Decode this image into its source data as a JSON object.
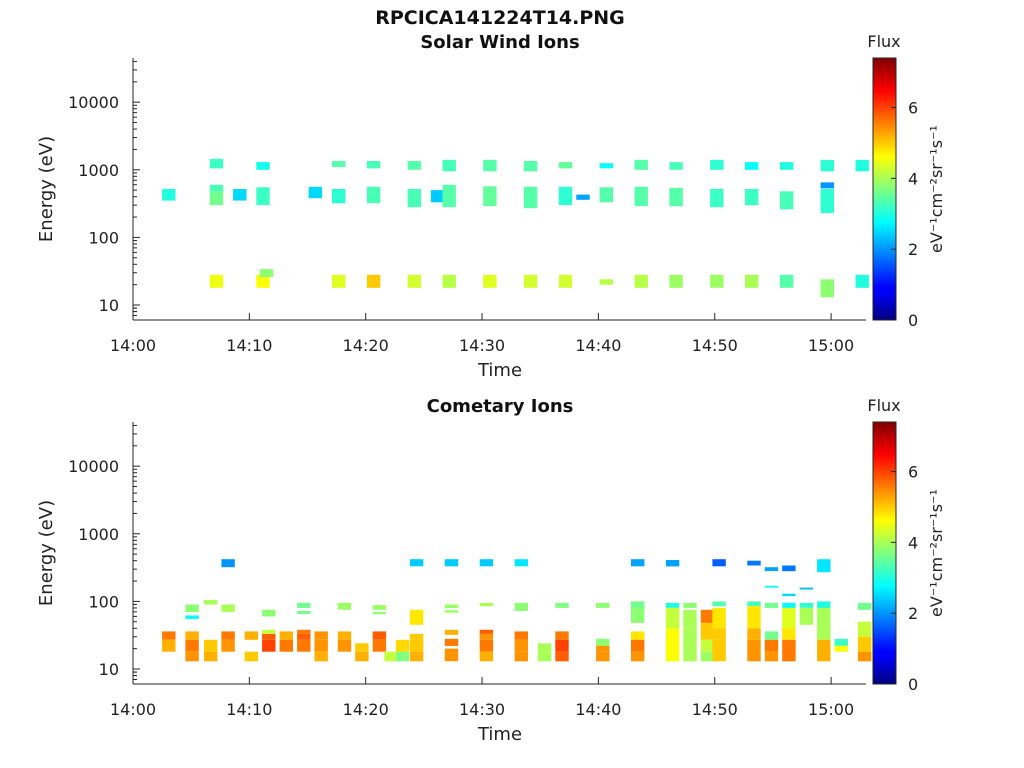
{
  "chart_data": [
    {
      "type": "heatmap",
      "title": "RPCICA141224T14.PNG",
      "subtitle": "Solar Wind Ions",
      "xlabel": "Time",
      "ylabel": "Energy (eV)",
      "x_ticks": [
        "14:00",
        "14:10",
        "14:20",
        "14:30",
        "14:40",
        "14:50",
        "15:00"
      ],
      "x_range_minutes": [
        0,
        63
      ],
      "y_scale": "log",
      "y_range": [
        6,
        45000
      ],
      "y_ticks": [
        "10",
        "100",
        "1000",
        "10000"
      ],
      "colorbar": {
        "label": "Flux",
        "unit": "eV⁻¹cm⁻²sr⁻¹s⁻¹",
        "range": [
          0,
          7.4
        ],
        "ticks": [
          "0",
          "2",
          "4",
          "6"
        ],
        "colormap": "jet"
      },
      "cells": [
        [
          2.5,
          350,
          520,
          3.0
        ],
        [
          6.6,
          1050,
          1450,
          3.2
        ],
        [
          6.6,
          480,
          600,
          3.3
        ],
        [
          6.6,
          300,
          480,
          3.6
        ],
        [
          6.6,
          18,
          28,
          4.5
        ],
        [
          8.6,
          350,
          520,
          2.5
        ],
        [
          10.6,
          1000,
          1300,
          2.9
        ],
        [
          10.6,
          300,
          550,
          3.2
        ],
        [
          10.6,
          18,
          28,
          4.6
        ],
        [
          10.9,
          26,
          34,
          3.8
        ],
        [
          15.1,
          380,
          560,
          2.5
        ],
        [
          17.1,
          1100,
          1350,
          3.4
        ],
        [
          17.1,
          320,
          520,
          3.1
        ],
        [
          17.1,
          18,
          28,
          4.4
        ],
        [
          20.1,
          1050,
          1350,
          3.3
        ],
        [
          20.1,
          320,
          560,
          3.3
        ],
        [
          20.1,
          18,
          28,
          5.0
        ],
        [
          23.6,
          1000,
          1350,
          3.4
        ],
        [
          23.6,
          280,
          520,
          3.3
        ],
        [
          23.6,
          18,
          28,
          4.3
        ],
        [
          25.6,
          330,
          500,
          2.4
        ],
        [
          26.6,
          950,
          1400,
          3.3
        ],
        [
          26.6,
          280,
          600,
          3.4
        ],
        [
          26.6,
          18,
          28,
          4.1
        ],
        [
          30.1,
          950,
          1400,
          3.4
        ],
        [
          30.1,
          290,
          570,
          3.5
        ],
        [
          30.1,
          18,
          28,
          4.4
        ],
        [
          33.6,
          950,
          1350,
          3.4
        ],
        [
          33.6,
          270,
          560,
          3.4
        ],
        [
          33.6,
          18,
          28,
          4.3
        ],
        [
          36.6,
          1050,
          1300,
          3.5
        ],
        [
          36.6,
          300,
          560,
          3.1
        ],
        [
          36.6,
          18,
          28,
          4.3
        ],
        [
          38.1,
          360,
          430,
          2.1
        ],
        [
          40.1,
          1050,
          1250,
          2.8
        ],
        [
          40.1,
          330,
          550,
          3.4
        ],
        [
          40.1,
          20,
          24,
          4.1
        ],
        [
          43.1,
          1000,
          1400,
          3.4
        ],
        [
          43.1,
          290,
          560,
          3.4
        ],
        [
          43.1,
          18,
          28,
          4.1
        ],
        [
          46.1,
          1000,
          1300,
          3.3
        ],
        [
          46.1,
          290,
          540,
          3.4
        ],
        [
          46.1,
          18,
          28,
          3.9
        ],
        [
          49.6,
          1000,
          1400,
          3.1
        ],
        [
          49.6,
          280,
          520,
          3.2
        ],
        [
          49.6,
          18,
          28,
          3.9
        ],
        [
          52.6,
          1000,
          1300,
          2.8
        ],
        [
          52.6,
          300,
          520,
          3.2
        ],
        [
          52.6,
          18,
          28,
          4.0
        ],
        [
          55.6,
          1000,
          1300,
          3.0
        ],
        [
          55.6,
          260,
          480,
          3.3
        ],
        [
          55.6,
          18,
          28,
          3.4
        ],
        [
          59.1,
          950,
          1400,
          3.1
        ],
        [
          59.1,
          530,
          650,
          2.0
        ],
        [
          59.1,
          230,
          520,
          3.1
        ],
        [
          59.1,
          13,
          24,
          3.8
        ],
        [
          62.1,
          950,
          1400,
          3.0
        ],
        [
          62.1,
          18,
          28,
          3.0
        ]
      ]
    },
    {
      "type": "heatmap",
      "title": "Cometary Ions",
      "xlabel": "Time",
      "ylabel": "Energy (eV)",
      "x_ticks": [
        "14:00",
        "14:10",
        "14:20",
        "14:30",
        "14:40",
        "14:50",
        "15:00"
      ],
      "x_range_minutes": [
        0,
        63
      ],
      "y_scale": "log",
      "y_range": [
        6,
        45000
      ],
      "y_ticks": [
        "10",
        "100",
        "1000",
        "10000"
      ],
      "colorbar": {
        "label": "Flux",
        "unit": "eV⁻¹cm⁻²sr⁻¹s⁻¹",
        "range": [
          0,
          7.4
        ],
        "ticks": [
          "0",
          "2",
          "4",
          "6"
        ],
        "colormap": "jet"
      },
      "cells": [
        [
          2.5,
          27,
          36,
          5.6
        ],
        [
          2.5,
          18,
          27,
          5.2
        ],
        [
          4.5,
          70,
          90,
          3.8
        ],
        [
          4.5,
          55,
          62,
          2.8
        ],
        [
          4.5,
          27,
          36,
          5.2
        ],
        [
          4.5,
          18,
          27,
          5.6
        ],
        [
          4.5,
          13,
          18,
          5.4
        ],
        [
          6.1,
          90,
          105,
          4.0
        ],
        [
          6.1,
          18,
          27,
          5.0
        ],
        [
          6.1,
          13,
          18,
          5.2
        ],
        [
          7.6,
          320,
          420,
          2.0
        ],
        [
          7.6,
          70,
          90,
          4.0
        ],
        [
          7.6,
          27,
          36,
          5.6
        ],
        [
          7.6,
          18,
          27,
          5.4
        ],
        [
          9.6,
          27,
          36,
          5.2
        ],
        [
          9.6,
          13,
          18,
          5.0
        ],
        [
          11.1,
          60,
          75,
          3.8
        ],
        [
          11.1,
          33,
          38,
          4.2
        ],
        [
          11.1,
          27,
          33,
          5.8
        ],
        [
          11.1,
          18,
          27,
          6.0
        ],
        [
          12.6,
          27,
          36,
          5.2
        ],
        [
          12.6,
          18,
          27,
          5.6
        ],
        [
          14.1,
          80,
          95,
          3.6
        ],
        [
          14.1,
          65,
          72,
          3.6
        ],
        [
          14.1,
          33,
          38,
          5.6
        ],
        [
          14.1,
          27,
          33,
          5.8
        ],
        [
          14.1,
          18,
          27,
          5.6
        ],
        [
          15.6,
          27,
          36,
          5.4
        ],
        [
          15.6,
          18,
          27,
          5.4
        ],
        [
          15.6,
          13,
          18,
          5.2
        ],
        [
          17.6,
          75,
          95,
          3.9
        ],
        [
          17.6,
          27,
          36,
          5.2
        ],
        [
          17.6,
          18,
          27,
          5.4
        ],
        [
          19.1,
          18,
          24,
          5.0
        ],
        [
          19.1,
          13,
          18,
          5.2
        ],
        [
          20.6,
          75,
          88,
          3.9
        ],
        [
          20.6,
          65,
          70,
          3.8
        ],
        [
          20.6,
          27,
          36,
          5.8
        ],
        [
          20.6,
          18,
          27,
          5.6
        ],
        [
          21.6,
          13,
          18,
          4.2
        ],
        [
          22.6,
          18,
          27,
          4.9
        ],
        [
          22.6,
          13,
          18,
          3.7
        ],
        [
          23.8,
          330,
          420,
          2.4
        ],
        [
          23.8,
          45,
          75,
          4.8
        ],
        [
          23.8,
          27,
          33,
          5.0
        ],
        [
          23.8,
          18,
          27,
          5.0
        ],
        [
          23.8,
          13,
          18,
          5.2
        ],
        [
          26.8,
          330,
          420,
          2.4
        ],
        [
          26.8,
          80,
          90,
          3.9
        ],
        [
          26.8,
          68,
          74,
          3.9
        ],
        [
          26.8,
          32,
          38,
          5.2
        ],
        [
          26.8,
          22,
          28,
          5.6
        ],
        [
          26.8,
          13,
          20,
          5.4
        ],
        [
          29.8,
          330,
          420,
          2.4
        ],
        [
          29.8,
          85,
          95,
          4.0
        ],
        [
          29.8,
          33,
          38,
          5.8
        ],
        [
          29.8,
          27,
          33,
          5.4
        ],
        [
          29.8,
          18,
          27,
          5.6
        ],
        [
          29.8,
          13,
          18,
          5.2
        ],
        [
          32.8,
          330,
          420,
          2.6
        ],
        [
          32.8,
          72,
          95,
          3.8
        ],
        [
          32.8,
          27,
          36,
          5.6
        ],
        [
          32.8,
          18,
          27,
          5.4
        ],
        [
          32.8,
          13,
          18,
          5.4
        ],
        [
          34.8,
          18,
          24,
          4.0
        ],
        [
          34.8,
          13,
          18,
          4.0
        ],
        [
          36.3,
          80,
          95,
          3.7
        ],
        [
          36.3,
          27,
          36,
          5.6
        ],
        [
          36.3,
          18,
          27,
          6.0
        ],
        [
          36.3,
          13,
          18,
          5.8
        ],
        [
          39.8,
          80,
          95,
          3.8
        ],
        [
          39.8,
          22,
          28,
          3.8
        ],
        [
          39.8,
          18,
          22,
          5.4
        ],
        [
          39.8,
          13,
          18,
          5.4
        ],
        [
          42.8,
          330,
          420,
          2.1
        ],
        [
          42.8,
          80,
          100,
          3.6
        ],
        [
          42.8,
          48,
          80,
          3.8
        ],
        [
          42.8,
          27,
          36,
          4.8
        ],
        [
          42.8,
          18,
          27,
          5.6
        ],
        [
          42.8,
          13,
          18,
          5.4
        ],
        [
          45.8,
          330,
          410,
          2.1
        ],
        [
          45.8,
          80,
          95,
          3.0
        ],
        [
          45.8,
          40,
          80,
          4.2
        ],
        [
          45.8,
          13,
          40,
          4.6
        ],
        [
          47.3,
          80,
          95,
          3.8
        ],
        [
          47.3,
          40,
          75,
          4.0
        ],
        [
          47.3,
          13,
          40,
          4.0
        ],
        [
          48.8,
          48,
          75,
          5.6
        ],
        [
          48.8,
          27,
          48,
          5.0
        ],
        [
          48.8,
          18,
          27,
          4.2
        ],
        [
          48.8,
          13,
          18,
          3.9
        ],
        [
          49.8,
          330,
          420,
          1.6
        ],
        [
          49.8,
          85,
          100,
          3.4
        ],
        [
          49.8,
          40,
          80,
          4.8
        ],
        [
          49.8,
          27,
          40,
          5.0
        ],
        [
          49.8,
          13,
          27,
          5.0
        ],
        [
          52.8,
          340,
          400,
          1.8
        ],
        [
          52.8,
          85,
          100,
          3.3
        ],
        [
          52.8,
          40,
          85,
          4.8
        ],
        [
          52.8,
          27,
          40,
          5.2
        ],
        [
          52.8,
          13,
          27,
          5.4
        ],
        [
          54.3,
          280,
          320,
          2.1
        ],
        [
          54.3,
          160,
          170,
          2.8
        ],
        [
          54.3,
          80,
          95,
          3.6
        ],
        [
          54.3,
          27,
          36,
          3.6
        ],
        [
          54.3,
          18,
          27,
          5.6
        ],
        [
          54.3,
          13,
          18,
          5.4
        ],
        [
          55.8,
          280,
          340,
          1.8
        ],
        [
          55.8,
          120,
          130,
          2.5
        ],
        [
          55.8,
          80,
          95,
          2.8
        ],
        [
          55.8,
          40,
          80,
          4.4
        ],
        [
          55.8,
          27,
          40,
          4.8
        ],
        [
          55.8,
          13,
          27,
          5.6
        ],
        [
          57.3,
          150,
          160,
          2.3
        ],
        [
          57.3,
          80,
          95,
          3.1
        ],
        [
          57.3,
          45,
          80,
          4.0
        ],
        [
          58.8,
          270,
          420,
          2.6
        ],
        [
          58.8,
          80,
          100,
          3.0
        ],
        [
          58.8,
          27,
          80,
          4.0
        ],
        [
          58.8,
          13,
          27,
          5.2
        ],
        [
          60.3,
          22,
          28,
          3.2
        ],
        [
          60.3,
          18,
          22,
          4.6
        ],
        [
          62.3,
          75,
          95,
          3.6
        ],
        [
          62.3,
          30,
          50,
          4.2
        ],
        [
          62.3,
          18,
          30,
          5.0
        ],
        [
          62.3,
          13,
          18,
          5.4
        ]
      ]
    }
  ]
}
